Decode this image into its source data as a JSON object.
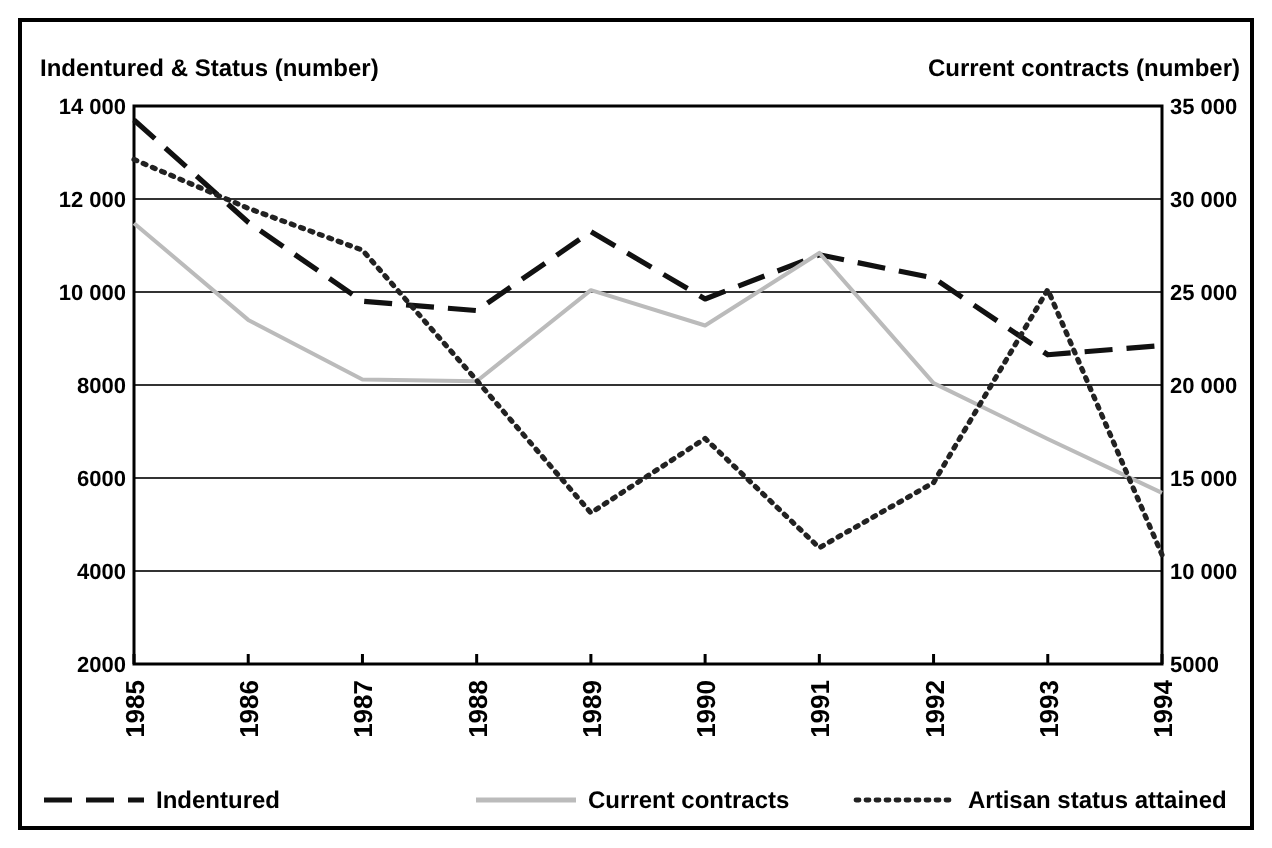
{
  "chart_data": {
    "type": "line",
    "ylabel": "Indentured & Status (number)",
    "y2label": "Current contracts (number)",
    "x": [
      1985,
      1986,
      1987,
      1988,
      1989,
      1990,
      1991,
      1992,
      1993,
      1994
    ],
    "xlim": [
      1985,
      1994
    ],
    "xticks": [
      1985,
      1986,
      1987,
      1988,
      1989,
      1990,
      1991,
      1992,
      1993,
      1994
    ],
    "ylim": [
      2000,
      14000
    ],
    "yticks": [
      {
        "value": 2000,
        "label": "2000"
      },
      {
        "value": 4000,
        "label": "4000"
      },
      {
        "value": 6000,
        "label": "6000"
      },
      {
        "value": 8000,
        "label": "8000"
      },
      {
        "value": 10000,
        "label": "10 000"
      },
      {
        "value": 12000,
        "label": "12 000"
      },
      {
        "value": 14000,
        "label": "14 000"
      }
    ],
    "y2lim": [
      5000,
      35000
    ],
    "y2ticks": [
      {
        "value": 5000,
        "label": "5000"
      },
      {
        "value": 10000,
        "label": "10 000"
      },
      {
        "value": 15000,
        "label": "15 000"
      },
      {
        "value": 20000,
        "label": "20 000"
      },
      {
        "value": 25000,
        "label": "25 000"
      },
      {
        "value": 30000,
        "label": "30 000"
      },
      {
        "value": 35000,
        "label": "35 000"
      }
    ],
    "grid": "y",
    "legend": "bottom",
    "series": [
      {
        "name": "Indentured",
        "color": "#111111",
        "line_style": "dashed",
        "values": [
          13700,
          11500,
          9800,
          9600,
          11300,
          9850,
          10800,
          10300,
          8650,
          8850
        ]
      },
      {
        "name": "Current contracts",
        "color": "#bbbbbb",
        "line_style": "solid",
        "axis": "y2",
        "values": [
          28700,
          23500,
          20300,
          20200,
          25100,
          23200,
          27100,
          20100,
          17100,
          14200
        ]
      },
      {
        "name": "Artisan status attained",
        "color": "#222222",
        "line_style": "dotted",
        "values": [
          12850,
          11800,
          10900,
          8100,
          5250,
          6850,
          4500,
          5900,
          10050,
          4350
        ]
      }
    ]
  }
}
